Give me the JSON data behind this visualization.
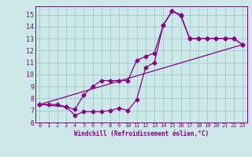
{
  "background_color": "#cce8e8",
  "grid_color": "#aacccc",
  "line_color": "#880088",
  "xlabel": "Windchill (Refroidissement éolien,°C)",
  "xlim": [
    -0.5,
    23.5
  ],
  "ylim": [
    6,
    15.7
  ],
  "yticks": [
    6,
    7,
    8,
    9,
    10,
    11,
    12,
    13,
    14,
    15
  ],
  "xticks": [
    0,
    1,
    2,
    3,
    4,
    5,
    6,
    7,
    8,
    9,
    10,
    11,
    12,
    13,
    14,
    15,
    16,
    17,
    18,
    19,
    20,
    21,
    22,
    23
  ],
  "curve1_x": [
    0,
    1,
    2,
    3,
    4,
    5,
    6,
    7,
    8,
    9,
    10,
    11,
    12,
    13,
    14,
    15,
    16,
    17,
    18,
    19,
    20,
    21,
    22,
    23
  ],
  "curve1_y": [
    7.5,
    7.5,
    7.5,
    7.3,
    6.6,
    6.9,
    6.9,
    6.9,
    7.0,
    7.2,
    7.0,
    7.9,
    10.6,
    11.0,
    14.1,
    15.3,
    15.0,
    13.0,
    13.0,
    13.0,
    13.0,
    13.0,
    13.0,
    12.5
  ],
  "curve2_x": [
    0,
    3,
    4,
    5,
    6,
    7,
    8,
    9,
    10,
    11,
    12,
    13,
    14,
    15,
    16,
    17,
    18,
    19,
    20,
    21,
    22,
    23
  ],
  "curve2_y": [
    7.5,
    7.3,
    7.1,
    8.3,
    9.0,
    9.5,
    9.5,
    9.5,
    9.5,
    11.2,
    11.5,
    11.8,
    14.1,
    15.3,
    14.9,
    13.0,
    13.0,
    13.0,
    13.0,
    13.0,
    13.0,
    12.5
  ],
  "curve3_x": [
    0,
    23
  ],
  "curve3_y": [
    7.5,
    12.5
  ]
}
